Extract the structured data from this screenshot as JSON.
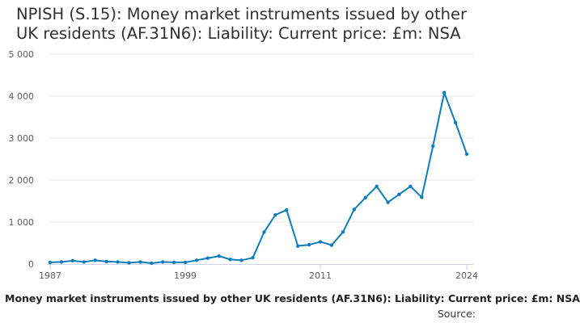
{
  "title": "NPISH (S.15): Money market instruments issued by other UK residents (AF.31N6): Liability: Current price: £m: NSA",
  "footer_text": "Money market instruments issued by other UK residents (AF.31N6): Liability: Current price: £m: NSA",
  "source_label": "Source:",
  "colors": {
    "series": "#0f7dbb",
    "grid": "#e6e6e6",
    "axis": "#ccd6eb",
    "text": "#323132"
  },
  "chart_data": {
    "type": "line",
    "title": "NPISH (S.15): Money market instruments issued by other UK residents (AF.31N6): Liability: Current price: £m: NSA",
    "xlabel": "",
    "ylabel": "",
    "x_ticks": [
      "1987",
      "1999",
      "2011",
      "2024"
    ],
    "y_ticks": [
      "0",
      "1 000",
      "2 000",
      "3 000",
      "4 000",
      "5 000"
    ],
    "xlim": [
      1987,
      2024
    ],
    "ylim": [
      0,
      5000
    ],
    "grid": true,
    "legend": "none",
    "series": [
      {
        "name": "",
        "x": [
          1987,
          1988,
          1989,
          1990,
          1991,
          1992,
          1993,
          1994,
          1995,
          1996,
          1997,
          1998,
          1999,
          2000,
          2001,
          2002,
          2003,
          2004,
          2005,
          2006,
          2007,
          2008,
          2009,
          2010,
          2011,
          2012,
          2013,
          2014,
          2015,
          2016,
          2017,
          2018,
          2019,
          2020,
          2021,
          2022,
          2023,
          2024
        ],
        "values": [
          40,
          50,
          80,
          50,
          90,
          60,
          50,
          30,
          50,
          20,
          50,
          40,
          40,
          90,
          140,
          190,
          110,
          90,
          150,
          760,
          1170,
          1290,
          430,
          460,
          530,
          450,
          760,
          1300,
          1580,
          1850,
          1470,
          1660,
          1850,
          1590,
          2810,
          4080,
          3370,
          2620
        ]
      }
    ]
  }
}
